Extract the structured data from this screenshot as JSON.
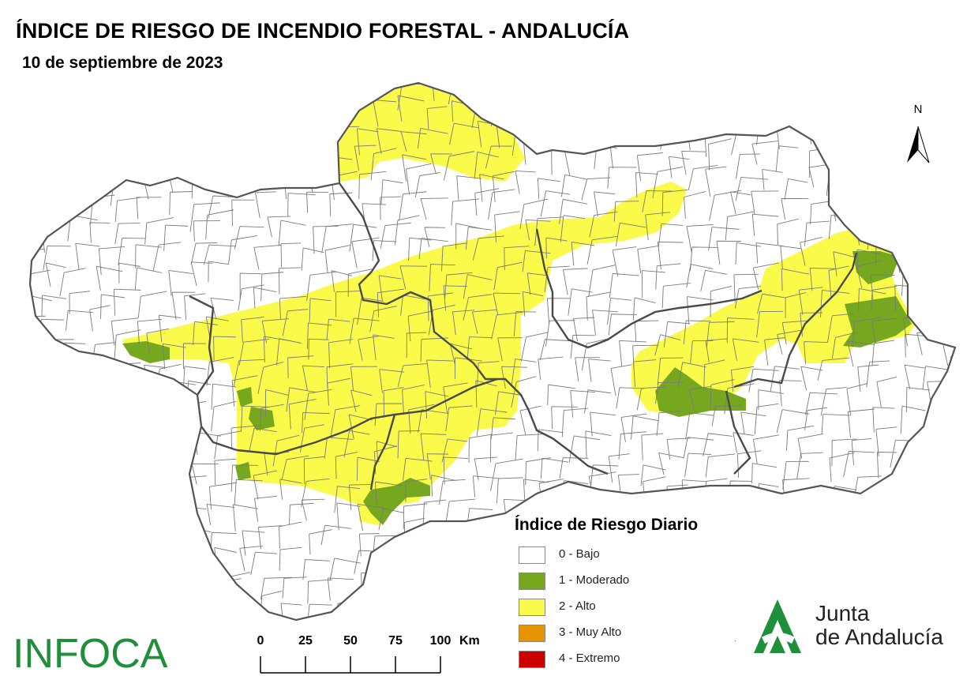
{
  "header": {
    "title": "ÍNDICE DE RIESGO DE INCENDIO FORESTAL - ANDALUCÍA",
    "date": "10 de septiembre de 2023"
  },
  "north_arrow": {
    "label": "N"
  },
  "legend": {
    "title": "Índice de Riesgo Diario",
    "items": [
      {
        "label": "0 - Bajo",
        "color": "#ffffff"
      },
      {
        "label": "1 - Moderado",
        "color": "#76a81f"
      },
      {
        "label": "2 - Alto",
        "color": "#fafa4a"
      },
      {
        "label": "3 - Muy Alto",
        "color": "#e69500"
      },
      {
        "label": "4 - Extremo",
        "color": "#cc0000"
      }
    ]
  },
  "scale_bar": {
    "ticks": [
      "0",
      "25",
      "50",
      "75",
      "100"
    ],
    "unit": "Km"
  },
  "logos": {
    "infoca": "INFOCA",
    "junta_line1": "Junta",
    "junta_line2": "de Andalucía",
    "junta_color": "#1f8f3a"
  },
  "map": {
    "region": "Andalucía",
    "fill_colors": {
      "low": "#ffffff",
      "moderate": "#76a81f",
      "high": "#fafa4a"
    },
    "border_color": "#555555"
  }
}
